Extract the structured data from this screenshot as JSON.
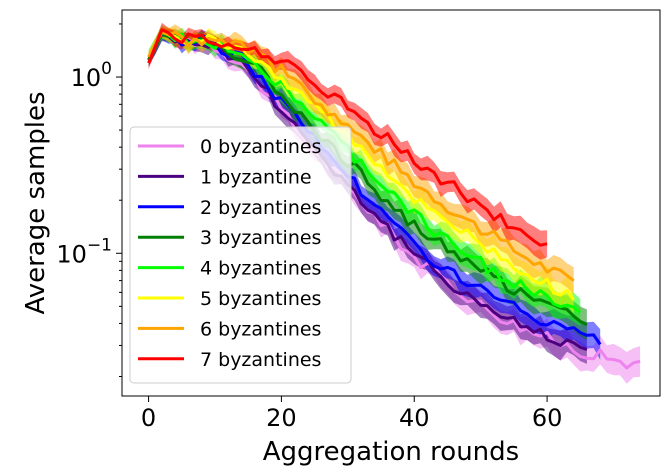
{
  "chart_data": {
    "type": "line",
    "title": "",
    "xlabel": "Aggregation rounds",
    "ylabel": "Average samples",
    "xlim": [
      -4,
      77
    ],
    "ylim": [
      0.0155,
      2.4
    ],
    "yscale": "log",
    "x_ticks": [
      0,
      20,
      40,
      60
    ],
    "y_ticks": [
      {
        "value": 1.0,
        "base": "10",
        "exp": "0"
      },
      {
        "value": 0.1,
        "base": "10",
        "exp": "−1"
      }
    ],
    "grid": false,
    "legend_position": "lower-left",
    "series": [
      {
        "name": "0 byzantines",
        "color": "#ee82ee",
        "x_end": 74,
        "anchors": [
          [
            0,
            1.25
          ],
          [
            2,
            1.75
          ],
          [
            5,
            1.6
          ],
          [
            8,
            1.6
          ],
          [
            10,
            1.5
          ],
          [
            14,
            1.2
          ],
          [
            18,
            0.8
          ],
          [
            22,
            0.52
          ],
          [
            26,
            0.35
          ],
          [
            30,
            0.24
          ],
          [
            35,
            0.15
          ],
          [
            40,
            0.095
          ],
          [
            45,
            0.068
          ],
          [
            50,
            0.051
          ],
          [
            55,
            0.04
          ],
          [
            60,
            0.033
          ],
          [
            65,
            0.028
          ],
          [
            70,
            0.025
          ],
          [
            74,
            0.023
          ]
        ]
      },
      {
        "name": "1 byzantine",
        "color": "#4b0082",
        "x_end": 66,
        "anchors": [
          [
            0,
            1.25
          ],
          [
            2,
            1.75
          ],
          [
            5,
            1.6
          ],
          [
            8,
            1.6
          ],
          [
            10,
            1.5
          ],
          [
            14,
            1.22
          ],
          [
            18,
            0.82
          ],
          [
            22,
            0.54
          ],
          [
            26,
            0.36
          ],
          [
            30,
            0.245
          ],
          [
            35,
            0.152
          ],
          [
            40,
            0.097
          ],
          [
            45,
            0.07
          ],
          [
            50,
            0.052
          ],
          [
            55,
            0.041
          ],
          [
            60,
            0.034
          ],
          [
            66,
            0.029
          ]
        ]
      },
      {
        "name": "2 byzantines",
        "color": "#0000ff",
        "x_end": 68,
        "anchors": [
          [
            0,
            1.25
          ],
          [
            2,
            1.75
          ],
          [
            5,
            1.6
          ],
          [
            8,
            1.6
          ],
          [
            10,
            1.52
          ],
          [
            14,
            1.28
          ],
          [
            18,
            0.9
          ],
          [
            22,
            0.6
          ],
          [
            26,
            0.41
          ],
          [
            30,
            0.28
          ],
          [
            35,
            0.172
          ],
          [
            40,
            0.112
          ],
          [
            45,
            0.08
          ],
          [
            50,
            0.062
          ],
          [
            55,
            0.049
          ],
          [
            60,
            0.04
          ],
          [
            65,
            0.034
          ],
          [
            68,
            0.031
          ]
        ]
      },
      {
        "name": "3 byzantines",
        "color": "#008000",
        "x_end": 66,
        "anchors": [
          [
            0,
            1.25
          ],
          [
            2,
            1.75
          ],
          [
            5,
            1.6
          ],
          [
            8,
            1.6
          ],
          [
            10,
            1.55
          ],
          [
            14,
            1.32
          ],
          [
            18,
            0.98
          ],
          [
            22,
            0.68
          ],
          [
            26,
            0.47
          ],
          [
            30,
            0.33
          ],
          [
            35,
            0.215
          ],
          [
            40,
            0.145
          ],
          [
            45,
            0.105
          ],
          [
            50,
            0.08
          ],
          [
            55,
            0.063
          ],
          [
            60,
            0.052
          ],
          [
            66,
            0.042
          ]
        ]
      },
      {
        "name": "4 byzantines",
        "color": "#00ff00",
        "x_end": 65,
        "anchors": [
          [
            0,
            1.3
          ],
          [
            2,
            1.8
          ],
          [
            5,
            1.62
          ],
          [
            8,
            1.6
          ],
          [
            10,
            1.56
          ],
          [
            14,
            1.38
          ],
          [
            18,
            1.05
          ],
          [
            22,
            0.76
          ],
          [
            26,
            0.54
          ],
          [
            30,
            0.38
          ],
          [
            35,
            0.25
          ],
          [
            40,
            0.165
          ],
          [
            45,
            0.118
          ],
          [
            50,
            0.088
          ],
          [
            55,
            0.068
          ],
          [
            60,
            0.055
          ],
          [
            65,
            0.046
          ]
        ]
      },
      {
        "name": "5 byzantines",
        "color": "#ffff00",
        "x_end": 64,
        "anchors": [
          [
            0,
            1.3
          ],
          [
            2,
            1.8
          ],
          [
            5,
            1.62
          ],
          [
            8,
            1.62
          ],
          [
            10,
            1.58
          ],
          [
            14,
            1.45
          ],
          [
            18,
            1.15
          ],
          [
            22,
            0.86
          ],
          [
            26,
            0.63
          ],
          [
            30,
            0.46
          ],
          [
            35,
            0.31
          ],
          [
            40,
            0.21
          ],
          [
            45,
            0.152
          ],
          [
            50,
            0.112
          ],
          [
            55,
            0.085
          ],
          [
            60,
            0.066
          ],
          [
            64,
            0.058
          ]
        ]
      },
      {
        "name": "6 byzantines",
        "color": "#ffa500",
        "x_end": 64,
        "anchors": [
          [
            0,
            1.3
          ],
          [
            2,
            1.8
          ],
          [
            5,
            1.62
          ],
          [
            8,
            1.62
          ],
          [
            10,
            1.6
          ],
          [
            14,
            1.5
          ],
          [
            18,
            1.22
          ],
          [
            22,
            0.95
          ],
          [
            26,
            0.71
          ],
          [
            30,
            0.53
          ],
          [
            35,
            0.37
          ],
          [
            40,
            0.255
          ],
          [
            45,
            0.185
          ],
          [
            50,
            0.138
          ],
          [
            55,
            0.105
          ],
          [
            60,
            0.082
          ],
          [
            64,
            0.07
          ]
        ]
      },
      {
        "name": "7 byzantines",
        "color": "#ff0000",
        "x_end": 60,
        "anchors": [
          [
            0,
            1.2
          ],
          [
            2,
            1.85
          ],
          [
            5,
            1.65
          ],
          [
            8,
            1.62
          ],
          [
            10,
            1.6
          ],
          [
            14,
            1.55
          ],
          [
            18,
            1.35
          ],
          [
            22,
            1.1
          ],
          [
            26,
            0.87
          ],
          [
            30,
            0.67
          ],
          [
            35,
            0.48
          ],
          [
            40,
            0.34
          ],
          [
            45,
            0.25
          ],
          [
            50,
            0.185
          ],
          [
            55,
            0.14
          ],
          [
            60,
            0.115
          ]
        ]
      }
    ]
  }
}
